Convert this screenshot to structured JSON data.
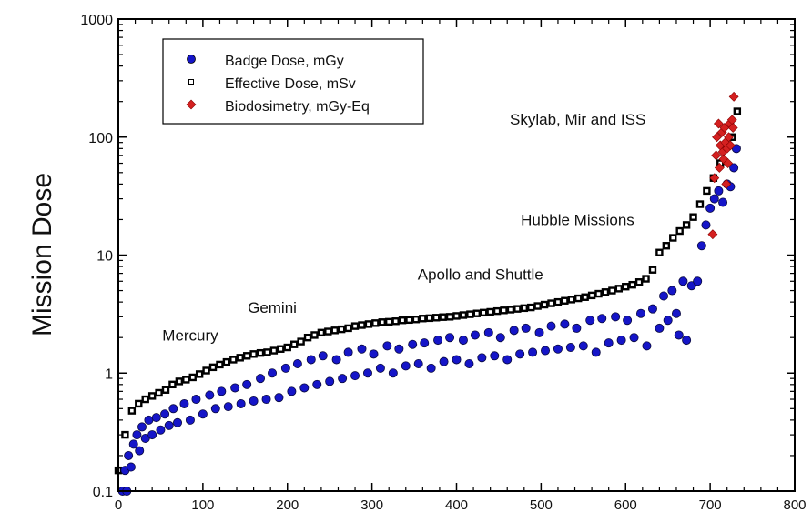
{
  "chart_data": {
    "type": "scatter",
    "title": "",
    "xlabel": "",
    "ylabel": "Mission Dose",
    "xlim": [
      0,
      800
    ],
    "ylim": [
      0.1,
      1000
    ],
    "yscale": "log",
    "xticks": [
      0,
      100,
      200,
      300,
      400,
      500,
      600,
      700,
      800
    ],
    "yticks": [
      0.1,
      1,
      10,
      100,
      1000
    ],
    "ytick_labels": [
      "0.1",
      "1",
      "10",
      "100",
      "1000"
    ],
    "grid": false,
    "legend_position": "top-left",
    "annotations": [
      {
        "text": "Mercury",
        "x": 52,
        "y": 2.1
      },
      {
        "text": "Gemini",
        "x": 153,
        "y": 3.6
      },
      {
        "text": "Apollo and Shuttle",
        "x": 354,
        "y": 6.9
      },
      {
        "text": "Hubble Missions",
        "x": 476,
        "y": 20
      },
      {
        "text": "Skylab, Mir and ISS",
        "x": 463,
        "y": 142
      }
    ],
    "series": [
      {
        "name": "Badge Dose, mGy",
        "marker": "circle",
        "color": "#1515c8",
        "points": [
          [
            5,
            0.1
          ],
          [
            10,
            0.1
          ],
          [
            8,
            0.15
          ],
          [
            12,
            0.2
          ],
          [
            15,
            0.16
          ],
          [
            18,
            0.25
          ],
          [
            22,
            0.3
          ],
          [
            25,
            0.22
          ],
          [
            28,
            0.35
          ],
          [
            32,
            0.28
          ],
          [
            36,
            0.4
          ],
          [
            40,
            0.3
          ],
          [
            45,
            0.42
          ],
          [
            50,
            0.33
          ],
          [
            55,
            0.45
          ],
          [
            60,
            0.36
          ],
          [
            65,
            0.5
          ],
          [
            70,
            0.38
          ],
          [
            78,
            0.55
          ],
          [
            85,
            0.4
          ],
          [
            92,
            0.6
          ],
          [
            100,
            0.45
          ],
          [
            108,
            0.65
          ],
          [
            115,
            0.5
          ],
          [
            122,
            0.7
          ],
          [
            130,
            0.52
          ],
          [
            138,
            0.75
          ],
          [
            145,
            0.55
          ],
          [
            152,
            0.8
          ],
          [
            160,
            0.58
          ],
          [
            168,
            0.9
          ],
          [
            175,
            0.6
          ],
          [
            182,
            1.0
          ],
          [
            190,
            0.62
          ],
          [
            198,
            1.1
          ],
          [
            205,
            0.7
          ],
          [
            212,
            1.2
          ],
          [
            220,
            0.75
          ],
          [
            228,
            1.3
          ],
          [
            235,
            0.8
          ],
          [
            242,
            1.4
          ],
          [
            250,
            0.85
          ],
          [
            258,
            1.3
          ],
          [
            265,
            0.9
          ],
          [
            272,
            1.5
          ],
          [
            280,
            0.95
          ],
          [
            288,
            1.6
          ],
          [
            295,
            1.0
          ],
          [
            302,
            1.45
          ],
          [
            310,
            1.1
          ],
          [
            318,
            1.7
          ],
          [
            325,
            1.0
          ],
          [
            332,
            1.6
          ],
          [
            340,
            1.15
          ],
          [
            348,
            1.75
          ],
          [
            355,
            1.2
          ],
          [
            362,
            1.8
          ],
          [
            370,
            1.1
          ],
          [
            378,
            1.9
          ],
          [
            385,
            1.25
          ],
          [
            392,
            2.0
          ],
          [
            400,
            1.3
          ],
          [
            408,
            1.9
          ],
          [
            415,
            1.2
          ],
          [
            422,
            2.1
          ],
          [
            430,
            1.35
          ],
          [
            438,
            2.2
          ],
          [
            445,
            1.4
          ],
          [
            452,
            2.0
          ],
          [
            460,
            1.3
          ],
          [
            468,
            2.3
          ],
          [
            475,
            1.45
          ],
          [
            482,
            2.4
          ],
          [
            490,
            1.5
          ],
          [
            498,
            2.2
          ],
          [
            505,
            1.55
          ],
          [
            512,
            2.5
          ],
          [
            520,
            1.6
          ],
          [
            528,
            2.6
          ],
          [
            535,
            1.65
          ],
          [
            542,
            2.4
          ],
          [
            550,
            1.7
          ],
          [
            558,
            2.8
          ],
          [
            565,
            1.5
          ],
          [
            572,
            2.9
          ],
          [
            580,
            1.8
          ],
          [
            588,
            3.0
          ],
          [
            595,
            1.9
          ],
          [
            602,
            2.8
          ],
          [
            610,
            2.0
          ],
          [
            618,
            3.2
          ],
          [
            625,
            1.7
          ],
          [
            632,
            3.5
          ],
          [
            640,
            2.4
          ],
          [
            645,
            4.5
          ],
          [
            650,
            2.8
          ],
          [
            655,
            5.0
          ],
          [
            660,
            3.2
          ],
          [
            663,
            2.1
          ],
          [
            668,
            6.0
          ],
          [
            672,
            1.9
          ],
          [
            678,
            5.5
          ],
          [
            685,
            6.0
          ],
          [
            690,
            12
          ],
          [
            695,
            18
          ],
          [
            700,
            25
          ],
          [
            705,
            30
          ],
          [
            710,
            35
          ],
          [
            715,
            28
          ],
          [
            720,
            40
          ],
          [
            724,
            38
          ],
          [
            728,
            55
          ],
          [
            731,
            80
          ]
        ]
      },
      {
        "name": "Effective Dose, mSv",
        "marker": "square",
        "color": "#000000",
        "points": [
          [
            0,
            0.15
          ],
          [
            8,
            0.3
          ],
          [
            16,
            0.48
          ],
          [
            24,
            0.55
          ],
          [
            32,
            0.6
          ],
          [
            40,
            0.64
          ],
          [
            48,
            0.68
          ],
          [
            56,
            0.72
          ],
          [
            64,
            0.8
          ],
          [
            72,
            0.85
          ],
          [
            80,
            0.88
          ],
          [
            88,
            0.92
          ],
          [
            96,
            0.98
          ],
          [
            104,
            1.05
          ],
          [
            112,
            1.12
          ],
          [
            120,
            1.18
          ],
          [
            128,
            1.24
          ],
          [
            136,
            1.3
          ],
          [
            144,
            1.35
          ],
          [
            152,
            1.4
          ],
          [
            160,
            1.45
          ],
          [
            168,
            1.48
          ],
          [
            176,
            1.5
          ],
          [
            184,
            1.55
          ],
          [
            192,
            1.6
          ],
          [
            200,
            1.65
          ],
          [
            208,
            1.75
          ],
          [
            216,
            1.85
          ],
          [
            224,
            2.0
          ],
          [
            232,
            2.1
          ],
          [
            240,
            2.2
          ],
          [
            248,
            2.25
          ],
          [
            256,
            2.3
          ],
          [
            264,
            2.35
          ],
          [
            272,
            2.4
          ],
          [
            280,
            2.5
          ],
          [
            288,
            2.55
          ],
          [
            296,
            2.6
          ],
          [
            304,
            2.65
          ],
          [
            312,
            2.7
          ],
          [
            320,
            2.72
          ],
          [
            328,
            2.75
          ],
          [
            336,
            2.8
          ],
          [
            344,
            2.82
          ],
          [
            352,
            2.85
          ],
          [
            360,
            2.9
          ],
          [
            368,
            2.92
          ],
          [
            376,
            2.95
          ],
          [
            384,
            2.98
          ],
          [
            392,
            3.0
          ],
          [
            400,
            3.05
          ],
          [
            408,
            3.1
          ],
          [
            416,
            3.15
          ],
          [
            424,
            3.2
          ],
          [
            432,
            3.25
          ],
          [
            440,
            3.3
          ],
          [
            448,
            3.35
          ],
          [
            456,
            3.4
          ],
          [
            464,
            3.45
          ],
          [
            472,
            3.5
          ],
          [
            480,
            3.55
          ],
          [
            488,
            3.6
          ],
          [
            496,
            3.7
          ],
          [
            504,
            3.8
          ],
          [
            512,
            3.9
          ],
          [
            520,
            4.0
          ],
          [
            528,
            4.1
          ],
          [
            536,
            4.2
          ],
          [
            544,
            4.3
          ],
          [
            552,
            4.4
          ],
          [
            560,
            4.55
          ],
          [
            568,
            4.7
          ],
          [
            576,
            4.85
          ],
          [
            584,
            5.0
          ],
          [
            592,
            5.2
          ],
          [
            600,
            5.4
          ],
          [
            608,
            5.6
          ],
          [
            616,
            5.9
          ],
          [
            624,
            6.3
          ],
          [
            632,
            7.5
          ],
          [
            640,
            10.5
          ],
          [
            648,
            12
          ],
          [
            656,
            14
          ],
          [
            664,
            16
          ],
          [
            672,
            18
          ],
          [
            680,
            21
          ],
          [
            688,
            27
          ],
          [
            696,
            35
          ],
          [
            704,
            45
          ],
          [
            712,
            60
          ],
          [
            720,
            85
          ],
          [
            726,
            100
          ],
          [
            732,
            165
          ]
        ]
      },
      {
        "name": "Biodosimetry, mGy-Eq",
        "marker": "diamond",
        "color": "#d42020",
        "points": [
          [
            703,
            15
          ],
          [
            705,
            45
          ],
          [
            707,
            70
          ],
          [
            708,
            100
          ],
          [
            710,
            130
          ],
          [
            711,
            55
          ],
          [
            712,
            85
          ],
          [
            714,
            110
          ],
          [
            715,
            75
          ],
          [
            716,
            65
          ],
          [
            717,
            120
          ],
          [
            718,
            90
          ],
          [
            719,
            40
          ],
          [
            720,
            80
          ],
          [
            721,
            60
          ],
          [
            722,
            100
          ],
          [
            723,
            130
          ],
          [
            724,
            85
          ],
          [
            726,
            140
          ],
          [
            727,
            120
          ],
          [
            728,
            220
          ]
        ]
      }
    ]
  }
}
